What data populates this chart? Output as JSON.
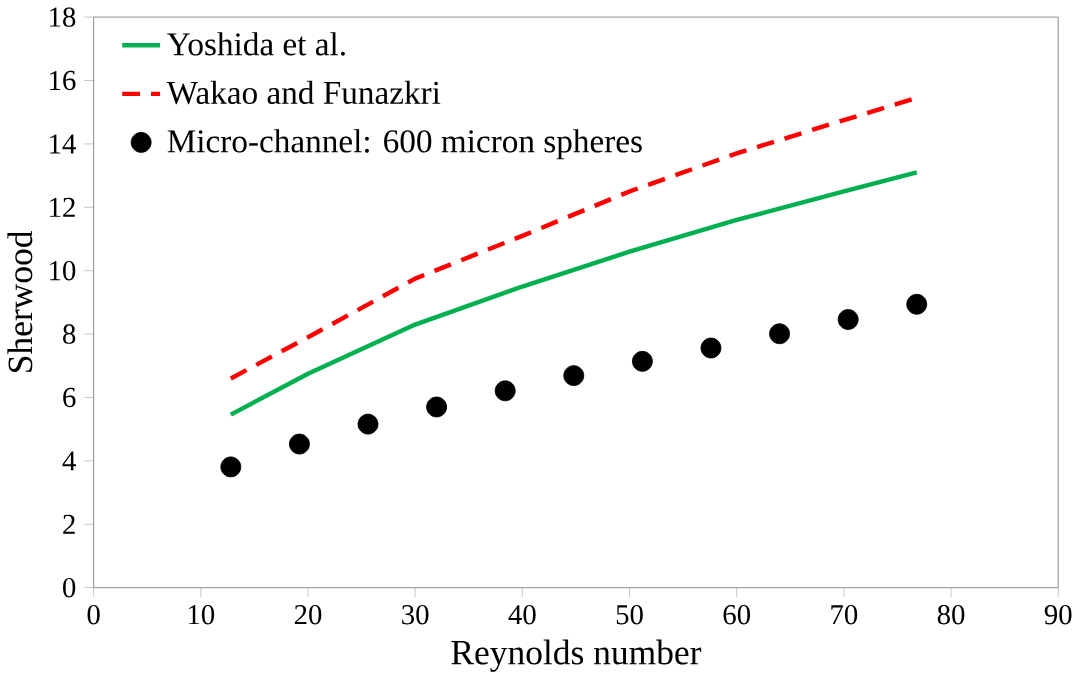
{
  "chart_data": {
    "type": "line",
    "xlabel": "Reynolds number",
    "ylabel": "Sherwood",
    "xlim": [
      0,
      90
    ],
    "ylim": [
      0,
      18
    ],
    "xticks": [
      0,
      10,
      20,
      30,
      40,
      50,
      60,
      70,
      80,
      90
    ],
    "yticks": [
      0,
      2,
      4,
      6,
      8,
      10,
      12,
      14,
      16,
      18
    ],
    "grid": false,
    "legend": "top left",
    "series": [
      {
        "name": "Yoshida et al.",
        "color": "#00b050",
        "line_style": "solid",
        "marker": "none",
        "x": [
          12.8,
          20,
          30,
          40,
          50,
          60,
          70,
          76.8
        ],
        "values": [
          5.46,
          6.75,
          8.3,
          9.5,
          10.6,
          11.6,
          12.5,
          13.1
        ]
      },
      {
        "name": "Wakao and Funazkri",
        "color": "#ff0000",
        "line_style": "dashed",
        "marker": "none",
        "x": [
          12.8,
          20,
          30,
          40,
          50,
          60,
          70,
          76.8
        ],
        "values": [
          6.6,
          7.9,
          9.75,
          11.1,
          12.5,
          13.7,
          14.75,
          15.45
        ]
      },
      {
        "name": "Micro-channel: 600 micron spheres",
        "type": "scatter",
        "color": "#000000",
        "marker": "circle",
        "x": [
          12.8,
          19.2,
          25.6,
          32,
          38.4,
          44.8,
          51.2,
          57.6,
          64,
          70.4,
          76.8
        ],
        "values": [
          3.81,
          4.53,
          5.16,
          5.7,
          6.21,
          6.69,
          7.14,
          7.56,
          8.01,
          8.46,
          8.94
        ]
      }
    ]
  }
}
